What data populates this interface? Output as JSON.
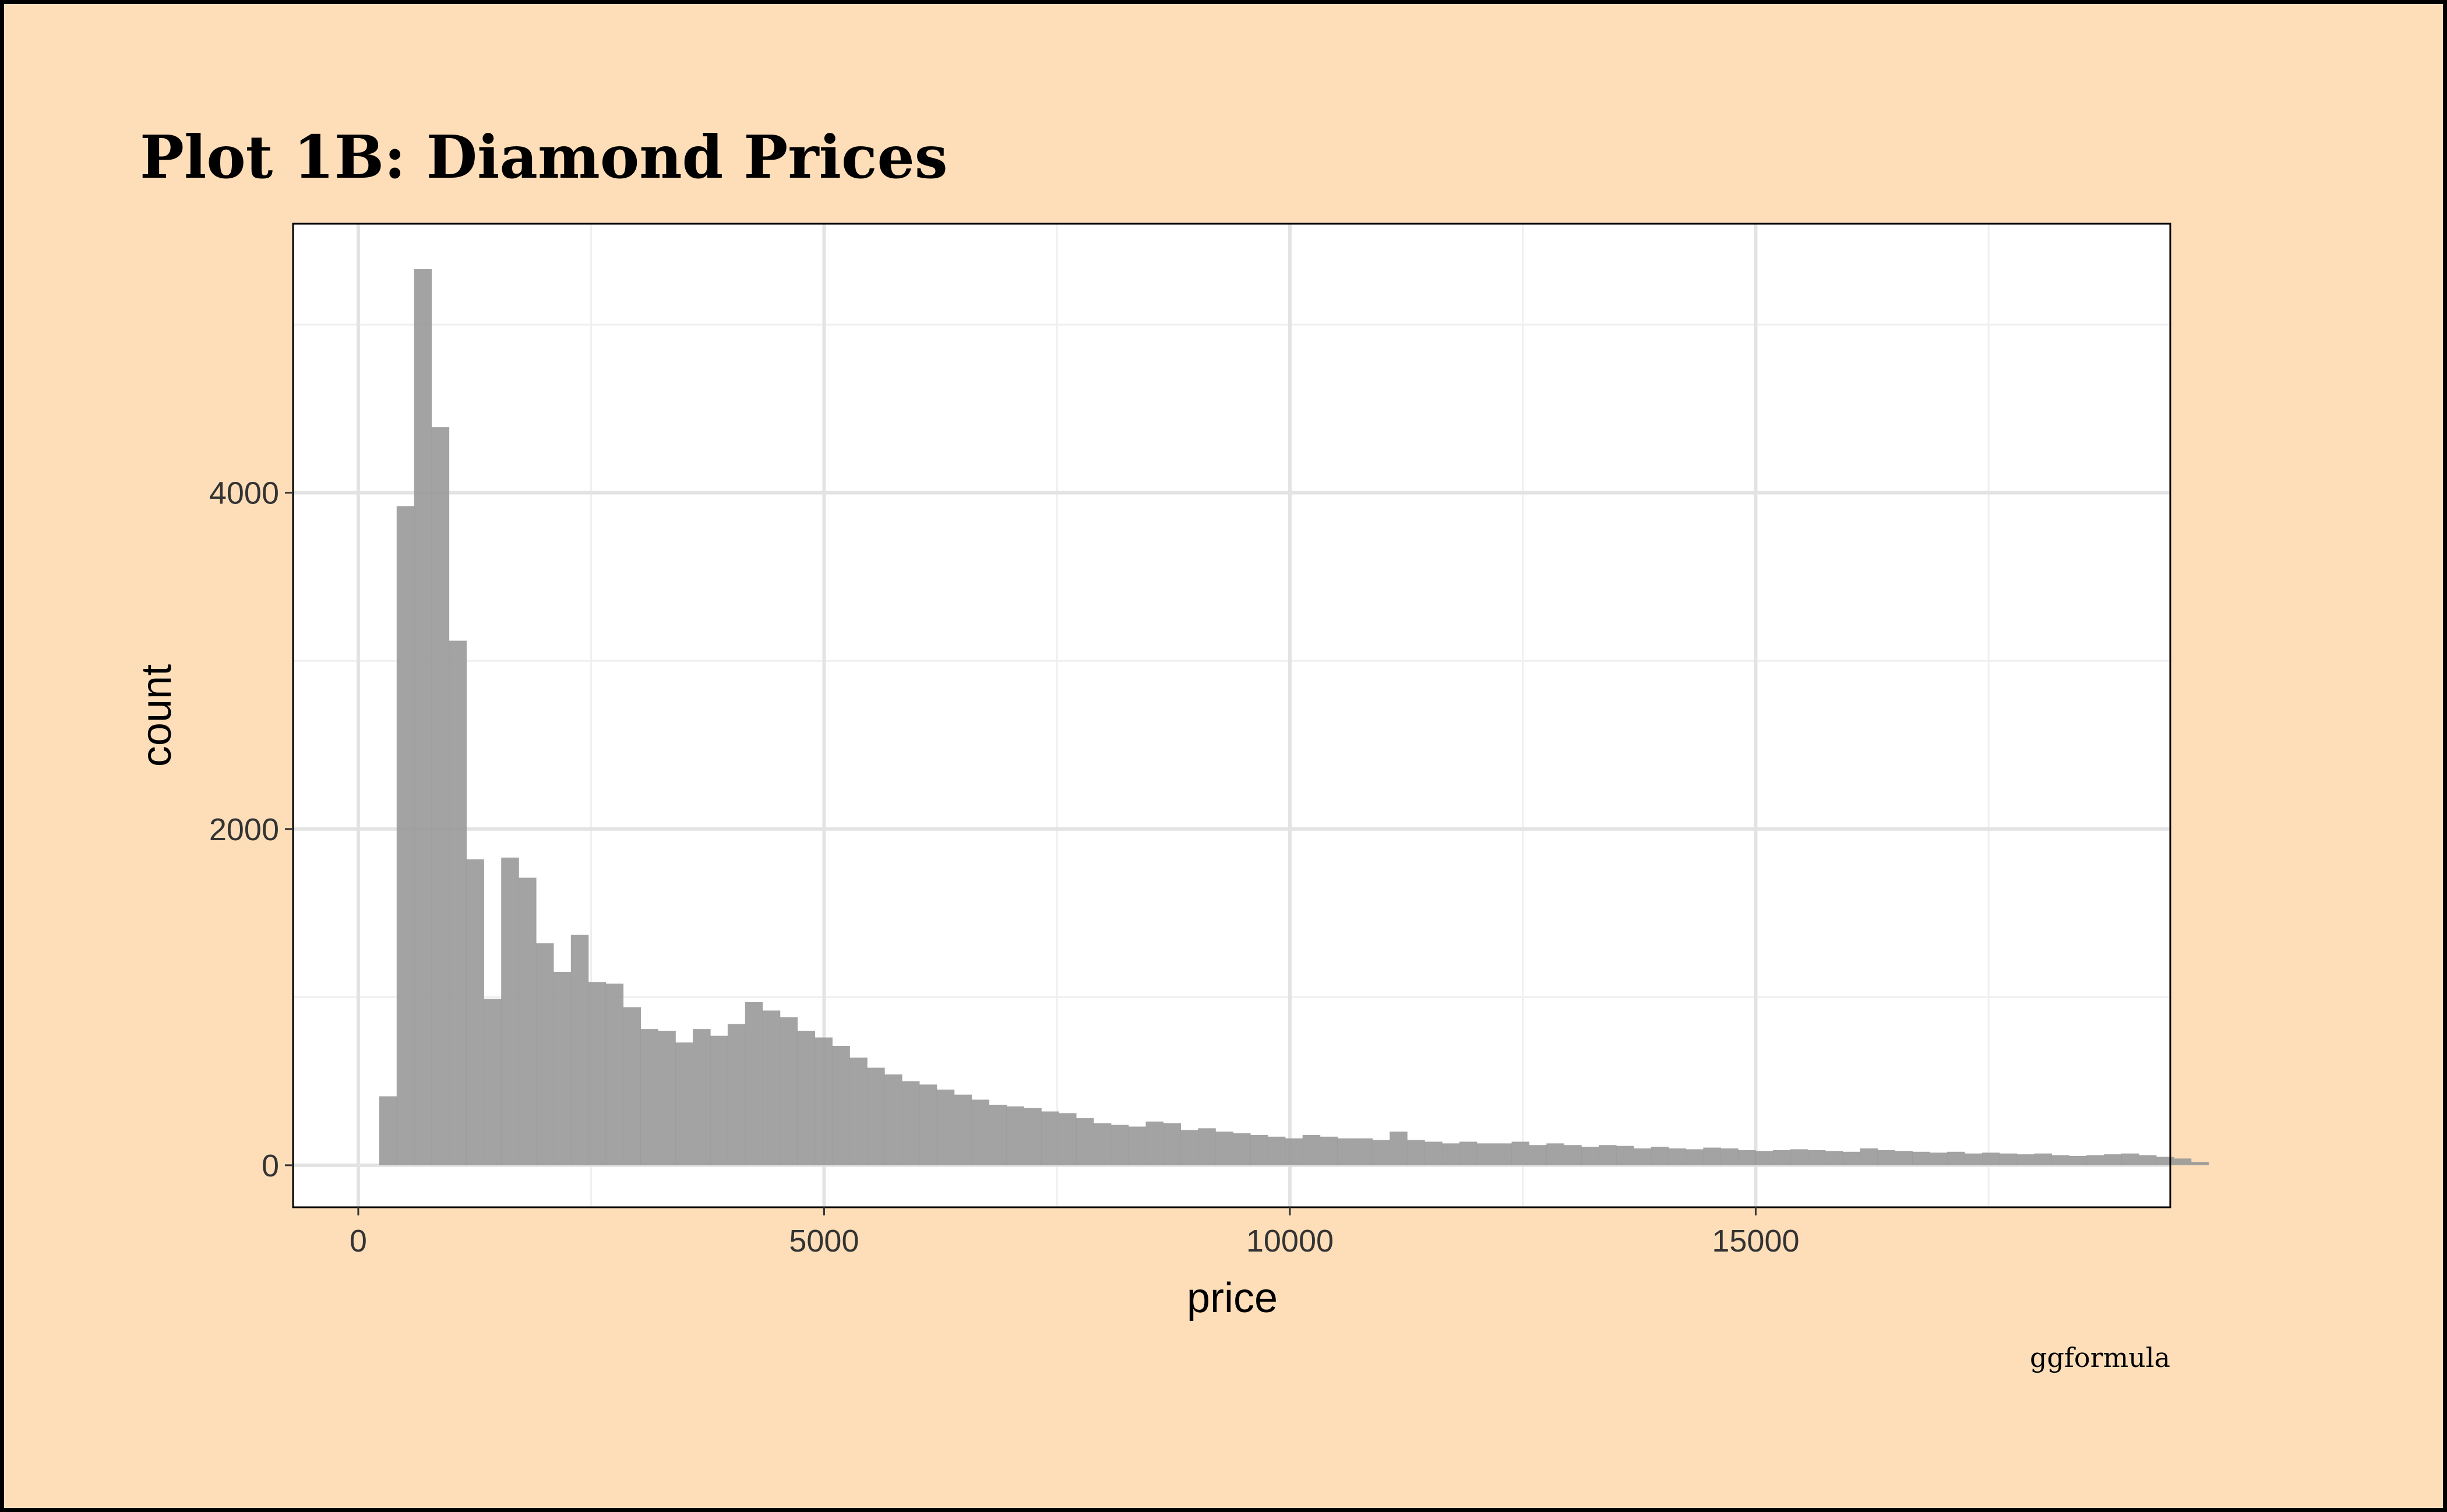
{
  "chart_data": {
    "type": "histogram",
    "title": "Plot 1B: Diamond Prices",
    "caption": "ggformula",
    "xlabel": "price",
    "ylabel": "count",
    "xlim": [
      -700,
      19450
    ],
    "ylim": [
      -250,
      5600
    ],
    "x_ticks": [
      0,
      5000,
      10000,
      15000
    ],
    "x_tick_labels": [
      "0",
      "5000",
      "10000",
      "15000"
    ],
    "y_ticks": [
      0,
      2000,
      4000
    ],
    "y_tick_labels": [
      "0",
      "2000",
      "4000"
    ],
    "x_minor_ticks": [
      2500,
      7500,
      12500,
      17500
    ],
    "y_minor_ticks": [
      1000,
      3000,
      5000
    ],
    "grid": true,
    "bar_color": "#999999",
    "bar_opacity": 0.9,
    "bins": {
      "start": 225,
      "width": 187,
      "counts": [
        410,
        3920,
        5330,
        4390,
        3120,
        1820,
        990,
        1830,
        1710,
        1320,
        1150,
        1370,
        1090,
        1080,
        940,
        810,
        800,
        730,
        810,
        770,
        840,
        970,
        920,
        880,
        800,
        760,
        710,
        640,
        580,
        540,
        500,
        480,
        450,
        420,
        390,
        360,
        350,
        340,
        320,
        310,
        280,
        250,
        240,
        230,
        260,
        250,
        210,
        220,
        200,
        190,
        180,
        170,
        160,
        180,
        170,
        160,
        160,
        150,
        200,
        150,
        140,
        130,
        140,
        130,
        130,
        140,
        120,
        130,
        120,
        110,
        120,
        115,
        100,
        110,
        100,
        95,
        105,
        100,
        90,
        85,
        90,
        95,
        90,
        85,
        80,
        100,
        90,
        85,
        80,
        75,
        80,
        70,
        75,
        70,
        65,
        70,
        60,
        55,
        60,
        65,
        70,
        60,
        50,
        40,
        20
      ]
    }
  },
  "colors": {
    "page_background": "#FDDEB9",
    "panel_background": "#FFFFFF",
    "border": "#000000",
    "grid_major": "#E3E3E3",
    "grid_minor": "#EFEFEF"
  }
}
